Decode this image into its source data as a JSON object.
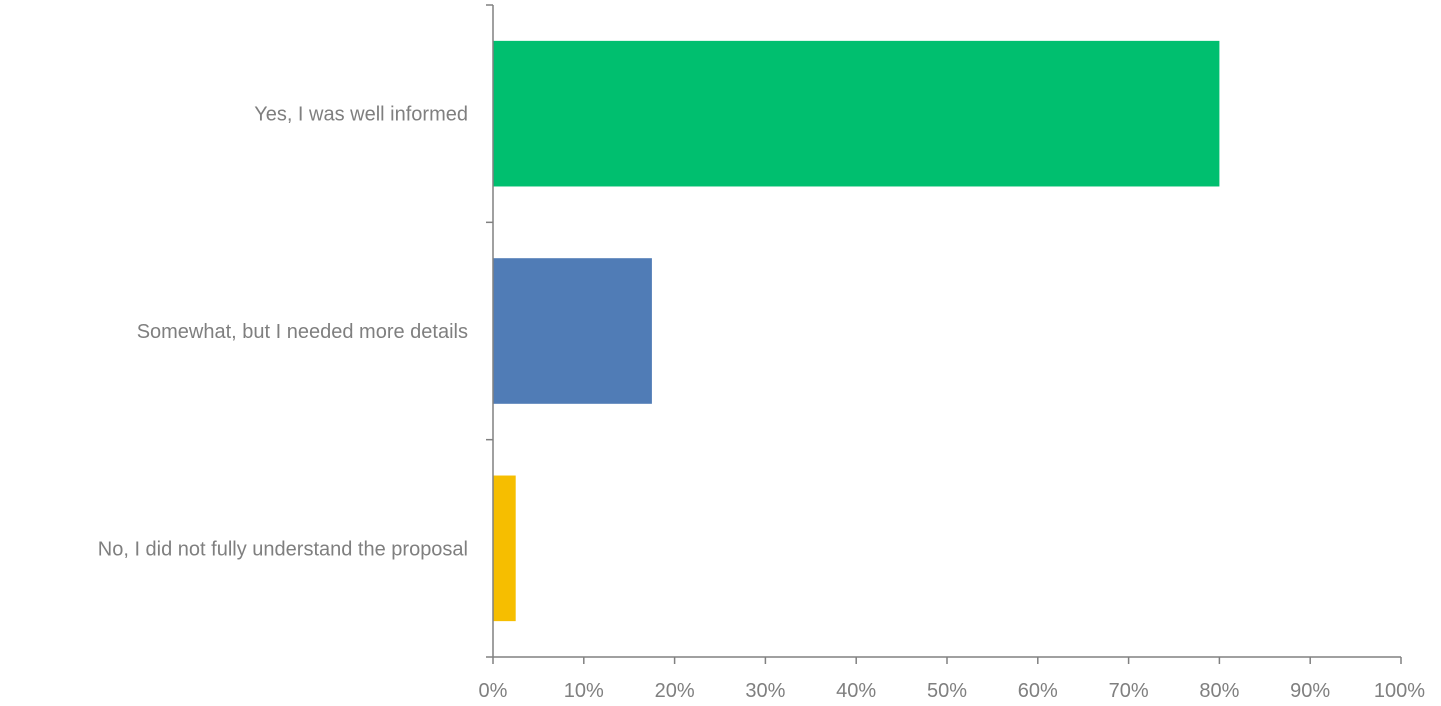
{
  "chart_data": {
    "type": "bar",
    "orientation": "horizontal",
    "categories": [
      "Yes, I was well informed",
      "Somewhat, but I needed more details",
      "No, I did not fully understand the proposal"
    ],
    "values": [
      80,
      17.5,
      2.5
    ],
    "colors": [
      "#00BF6F",
      "#507CB6",
      "#F6BE00"
    ],
    "xlim": [
      0,
      100
    ],
    "xticks": [
      0,
      10,
      20,
      30,
      40,
      50,
      60,
      70,
      80,
      90,
      100
    ],
    "xtick_labels": [
      "0%",
      "10%",
      "20%",
      "30%",
      "40%",
      "50%",
      "60%",
      "70%",
      "80%",
      "90%",
      "100%"
    ],
    "title": "",
    "xlabel": "",
    "ylabel": "",
    "grid": false,
    "legend": "none"
  }
}
